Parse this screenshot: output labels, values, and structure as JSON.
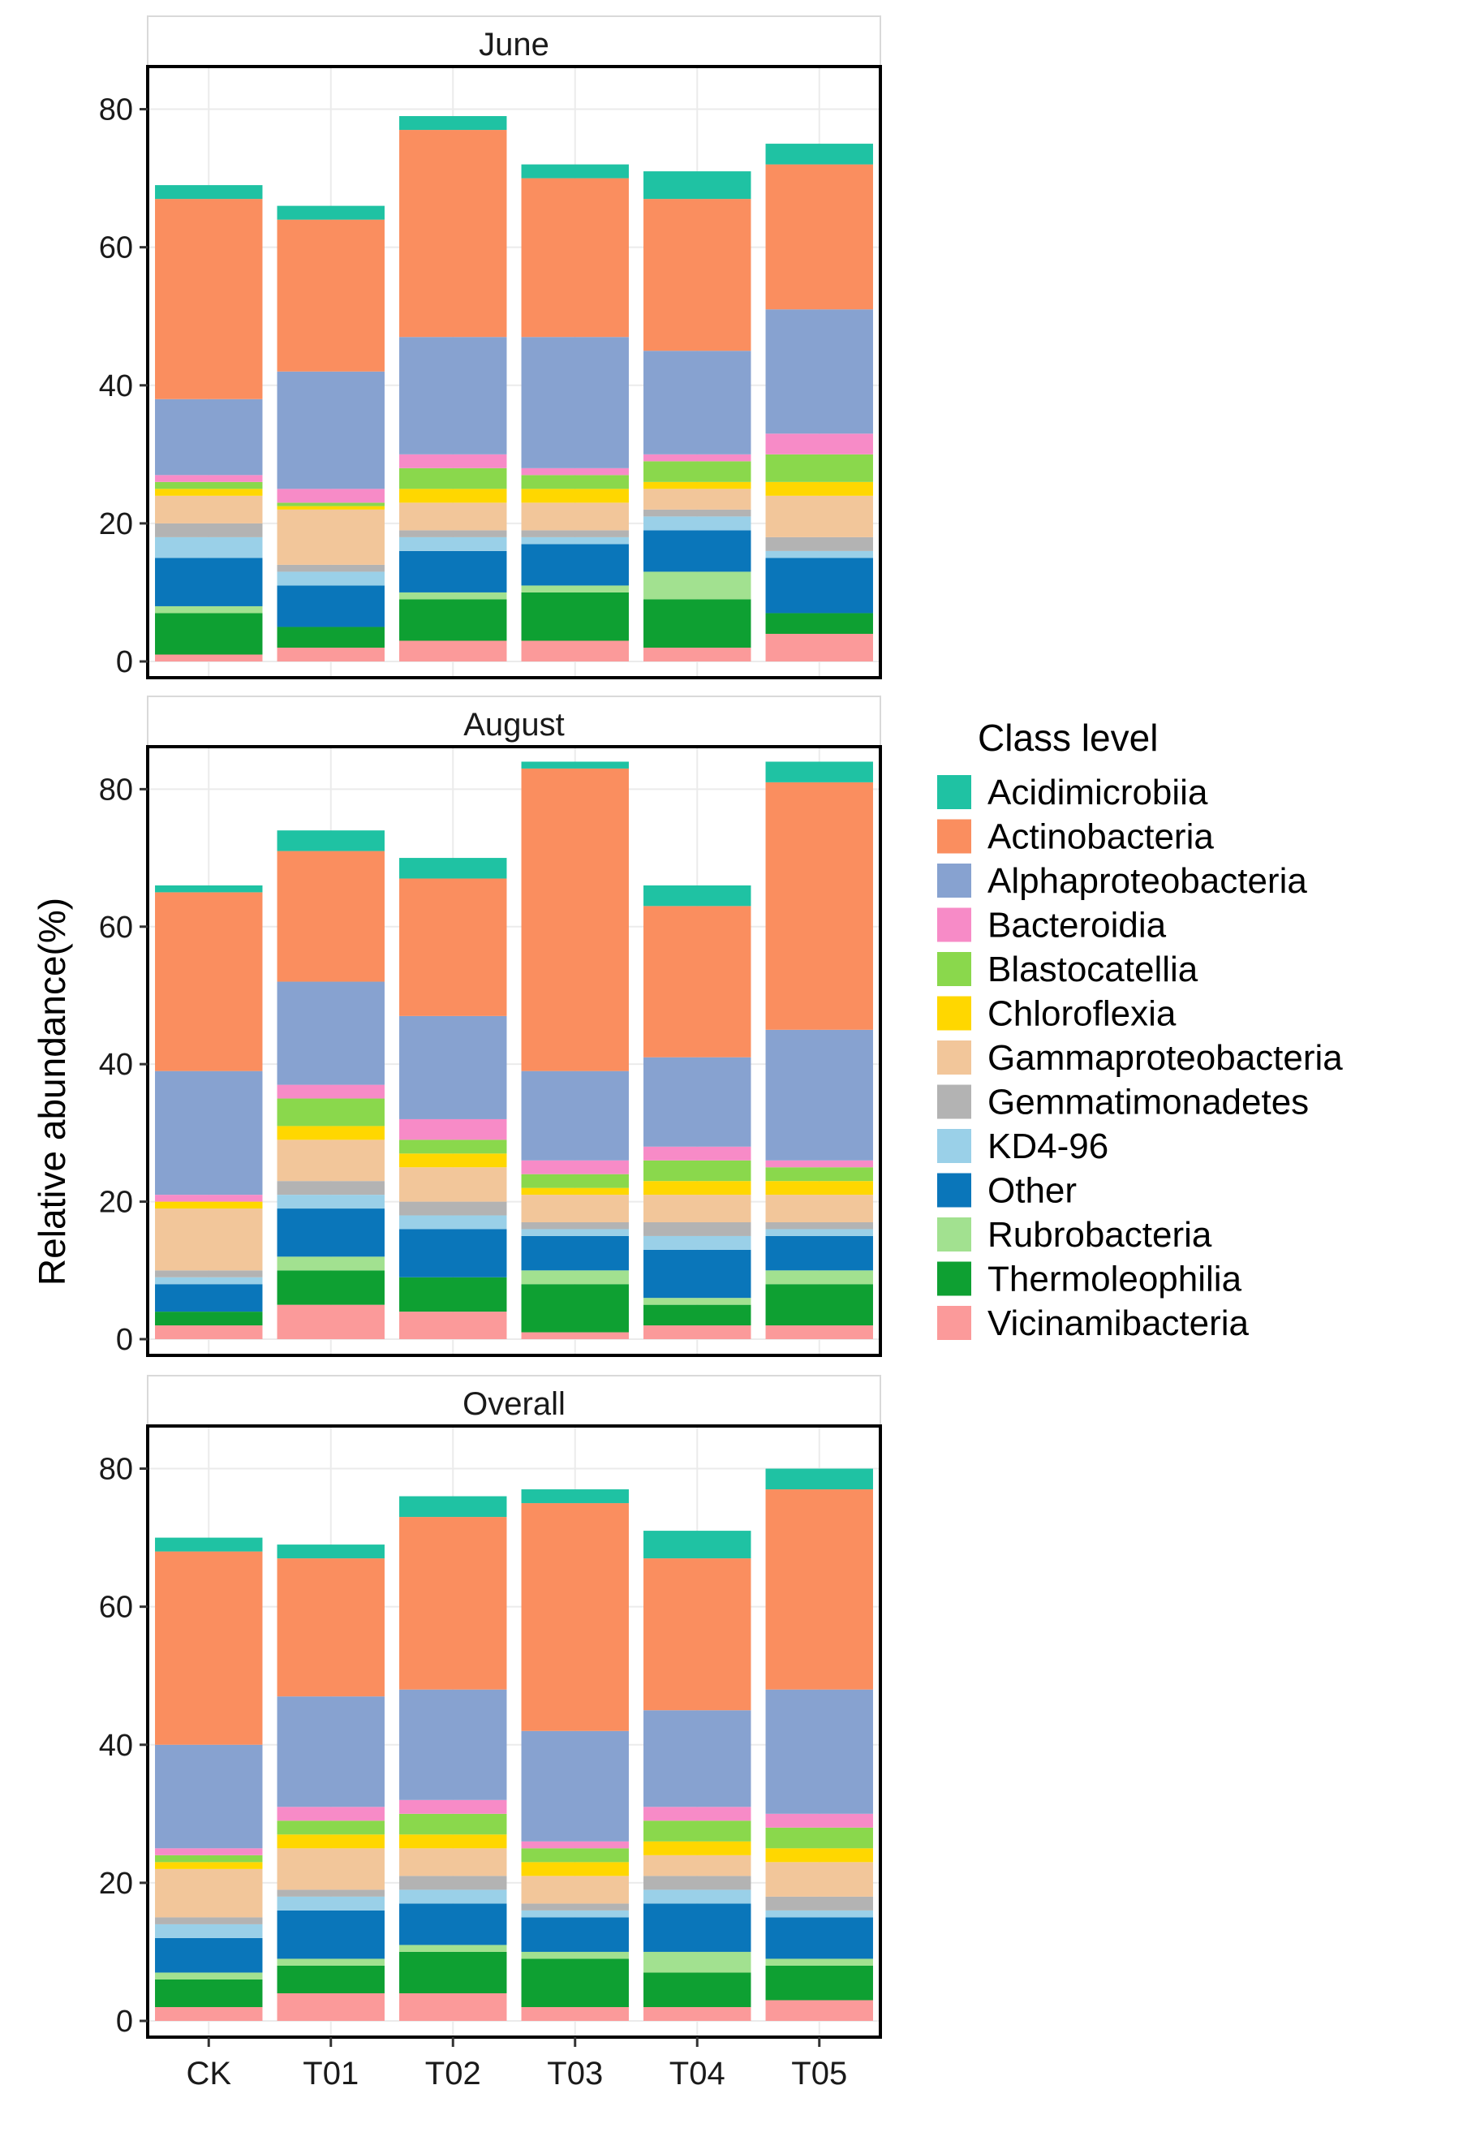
{
  "chart_data": {
    "type": "bar",
    "stacked": true,
    "ylabel": "Relative abundance(%)",
    "ylim": [
      0,
      85
    ],
    "y_ticks": [
      0,
      20,
      40,
      60,
      80
    ],
    "categories": [
      "CK",
      "T01",
      "T02",
      "T03",
      "T04",
      "T05"
    ],
    "legend": {
      "title": "Class level",
      "position": "right",
      "entries": [
        {
          "name": "Acidimicrobiia",
          "color": "#1fc2a3"
        },
        {
          "name": "Actinobacteria",
          "color": "#fa8e5f"
        },
        {
          "name": "Alphaproteobacteria",
          "color": "#87a2d0"
        },
        {
          "name": "Bacteroidia",
          "color": "#f78bc7"
        },
        {
          "name": "Blastocatellia",
          "color": "#8ad84c"
        },
        {
          "name": "Chloroflexia",
          "color": "#ffd700"
        },
        {
          "name": "Gammaproteobacteria",
          "color": "#f2c69a"
        },
        {
          "name": "Gemmatimonadetes",
          "color": "#b3b3b3"
        },
        {
          "name": "KD4-96",
          "color": "#9ad0e8"
        },
        {
          "name": "Other",
          "color": "#0a76ba"
        },
        {
          "name": "Rubrobacteria",
          "color": "#a2e190"
        },
        {
          "name": "Thermoleophilia",
          "color": "#0ea032"
        },
        {
          "name": "Vicinamibacteria",
          "color": "#fb9a9a"
        }
      ]
    },
    "panels": [
      {
        "title": "June",
        "series": [
          {
            "name": "Vicinamibacteria",
            "values": [
              1,
              2,
              3,
              3,
              2,
              4
            ]
          },
          {
            "name": "Thermoleophilia",
            "values": [
              6,
              3,
              6,
              7,
              7,
              3
            ]
          },
          {
            "name": "Rubrobacteria",
            "values": [
              1,
              0,
              1,
              1,
              4,
              0
            ]
          },
          {
            "name": "Other",
            "values": [
              7,
              6,
              6,
              6,
              6,
              8
            ]
          },
          {
            "name": "KD4-96",
            "values": [
              3,
              2,
              2,
              1,
              2,
              1
            ]
          },
          {
            "name": "Gemmatimonadetes",
            "values": [
              2,
              1,
              1,
              1,
              1,
              2
            ]
          },
          {
            "name": "Gammaproteobacteria",
            "values": [
              4,
              8,
              4,
              4,
              3,
              6
            ]
          },
          {
            "name": "Chloroflexia",
            "values": [
              1,
              0.5,
              2,
              2,
              1,
              2
            ]
          },
          {
            "name": "Blastocatellia",
            "values": [
              1,
              0.5,
              3,
              2,
              3,
              4
            ]
          },
          {
            "name": "Bacteroidia",
            "values": [
              1,
              2,
              2,
              1,
              1,
              3
            ]
          },
          {
            "name": "Alphaproteobacteria",
            "values": [
              11,
              17,
              17,
              19,
              15,
              18
            ]
          },
          {
            "name": "Actinobacteria",
            "values": [
              29,
              22,
              30,
              23,
              22,
              21
            ]
          },
          {
            "name": "Acidimicrobiia",
            "values": [
              2,
              2,
              2,
              2,
              4,
              3
            ]
          }
        ]
      },
      {
        "title": "August",
        "series": [
          {
            "name": "Vicinamibacteria",
            "values": [
              2,
              5,
              4,
              1,
              2,
              2
            ]
          },
          {
            "name": "Thermoleophilia",
            "values": [
              2,
              5,
              5,
              7,
              3,
              6
            ]
          },
          {
            "name": "Rubrobacteria",
            "values": [
              0,
              2,
              0,
              2,
              1,
              2
            ]
          },
          {
            "name": "Other",
            "values": [
              4,
              7,
              7,
              5,
              7,
              5
            ]
          },
          {
            "name": "KD4-96",
            "values": [
              1,
              2,
              2,
              1,
              2,
              1
            ]
          },
          {
            "name": "Gemmatimonadetes",
            "values": [
              1,
              2,
              2,
              1,
              2,
              1
            ]
          },
          {
            "name": "Gammaproteobacteria",
            "values": [
              9,
              6,
              5,
              4,
              4,
              4
            ]
          },
          {
            "name": "Chloroflexia",
            "values": [
              1,
              2,
              2,
              1,
              2,
              2
            ]
          },
          {
            "name": "Blastocatellia",
            "values": [
              0,
              4,
              2,
              2,
              3,
              2
            ]
          },
          {
            "name": "Bacteroidia",
            "values": [
              1,
              2,
              3,
              2,
              2,
              1
            ]
          },
          {
            "name": "Alphaproteobacteria",
            "values": [
              18,
              15,
              15,
              13,
              13,
              19
            ]
          },
          {
            "name": "Actinobacteria",
            "values": [
              26,
              19,
              20,
              44,
              22,
              36
            ]
          },
          {
            "name": "Acidimicrobiia",
            "values": [
              1,
              3,
              3,
              1,
              3,
              3
            ]
          }
        ]
      },
      {
        "title": "Overall",
        "series": [
          {
            "name": "Vicinamibacteria",
            "values": [
              2,
              4,
              4,
              2,
              2,
              3
            ]
          },
          {
            "name": "Thermoleophilia",
            "values": [
              4,
              4,
              6,
              7,
              5,
              5
            ]
          },
          {
            "name": "Rubrobacteria",
            "values": [
              1,
              1,
              1,
              1,
              3,
              1
            ]
          },
          {
            "name": "Other",
            "values": [
              5,
              7,
              6,
              5,
              7,
              6
            ]
          },
          {
            "name": "KD4-96",
            "values": [
              2,
              2,
              2,
              1,
              2,
              1
            ]
          },
          {
            "name": "Gemmatimonadetes",
            "values": [
              1,
              1,
              2,
              1,
              2,
              2
            ]
          },
          {
            "name": "Gammaproteobacteria",
            "values": [
              7,
              6,
              4,
              4,
              3,
              5
            ]
          },
          {
            "name": "Chloroflexia",
            "values": [
              1,
              2,
              2,
              2,
              2,
              2
            ]
          },
          {
            "name": "Blastocatellia",
            "values": [
              1,
              2,
              3,
              2,
              3,
              3
            ]
          },
          {
            "name": "Bacteroidia",
            "values": [
              1,
              2,
              2,
              1,
              2,
              2
            ]
          },
          {
            "name": "Alphaproteobacteria",
            "values": [
              15,
              16,
              16,
              16,
              14,
              18
            ]
          },
          {
            "name": "Actinobacteria",
            "values": [
              28,
              20,
              25,
              33,
              22,
              29
            ]
          },
          {
            "name": "Acidimicrobiia",
            "values": [
              2,
              2,
              3,
              2,
              4,
              3
            ]
          }
        ]
      }
    ]
  }
}
